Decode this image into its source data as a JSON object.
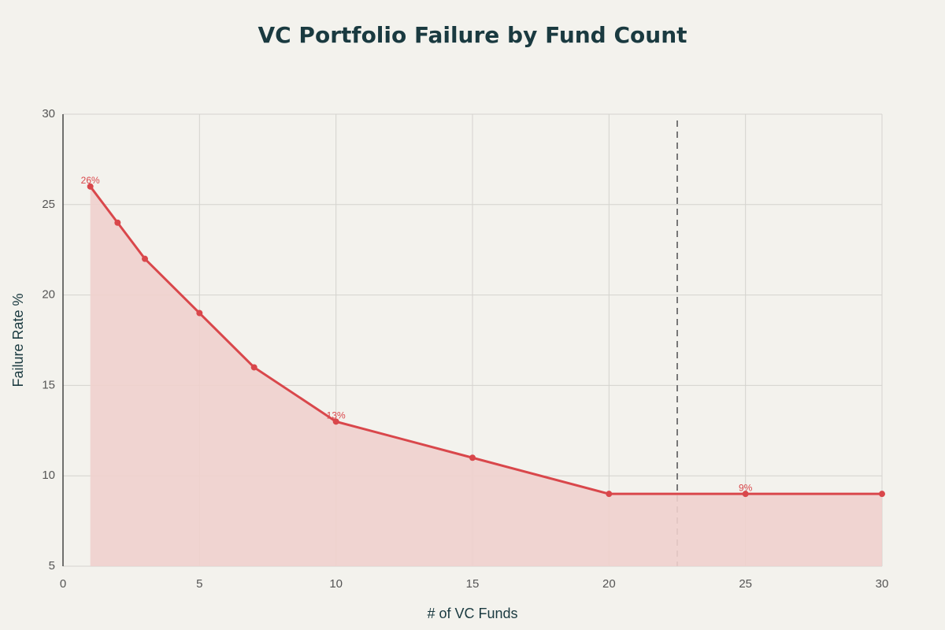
{
  "chart_data": {
    "type": "line",
    "title": "VC Portfolio Failure by Fund Count",
    "x_label": "# of VC Funds",
    "y_label": "Failure Rate %",
    "x": [
      1,
      2,
      3,
      5,
      7,
      10,
      15,
      20,
      25,
      30
    ],
    "series": [
      {
        "name": "Failure Rate",
        "color": "#d9474b",
        "fill": "#efd0cd",
        "values": [
          26,
          24,
          22,
          19,
          16,
          13,
          11,
          9,
          9,
          9
        ],
        "value_labels": [
          "26%",
          null,
          null,
          null,
          null,
          "13%",
          null,
          null,
          "9%",
          null
        ]
      }
    ],
    "xlim": [
      0,
      30
    ],
    "xticks": [
      0,
      5,
      10,
      15,
      20,
      25,
      30
    ],
    "ylim": [
      5,
      30
    ],
    "yticks": [
      5,
      10,
      15,
      20,
      25,
      30
    ],
    "grid": true,
    "reference_line_x": 22.5
  }
}
